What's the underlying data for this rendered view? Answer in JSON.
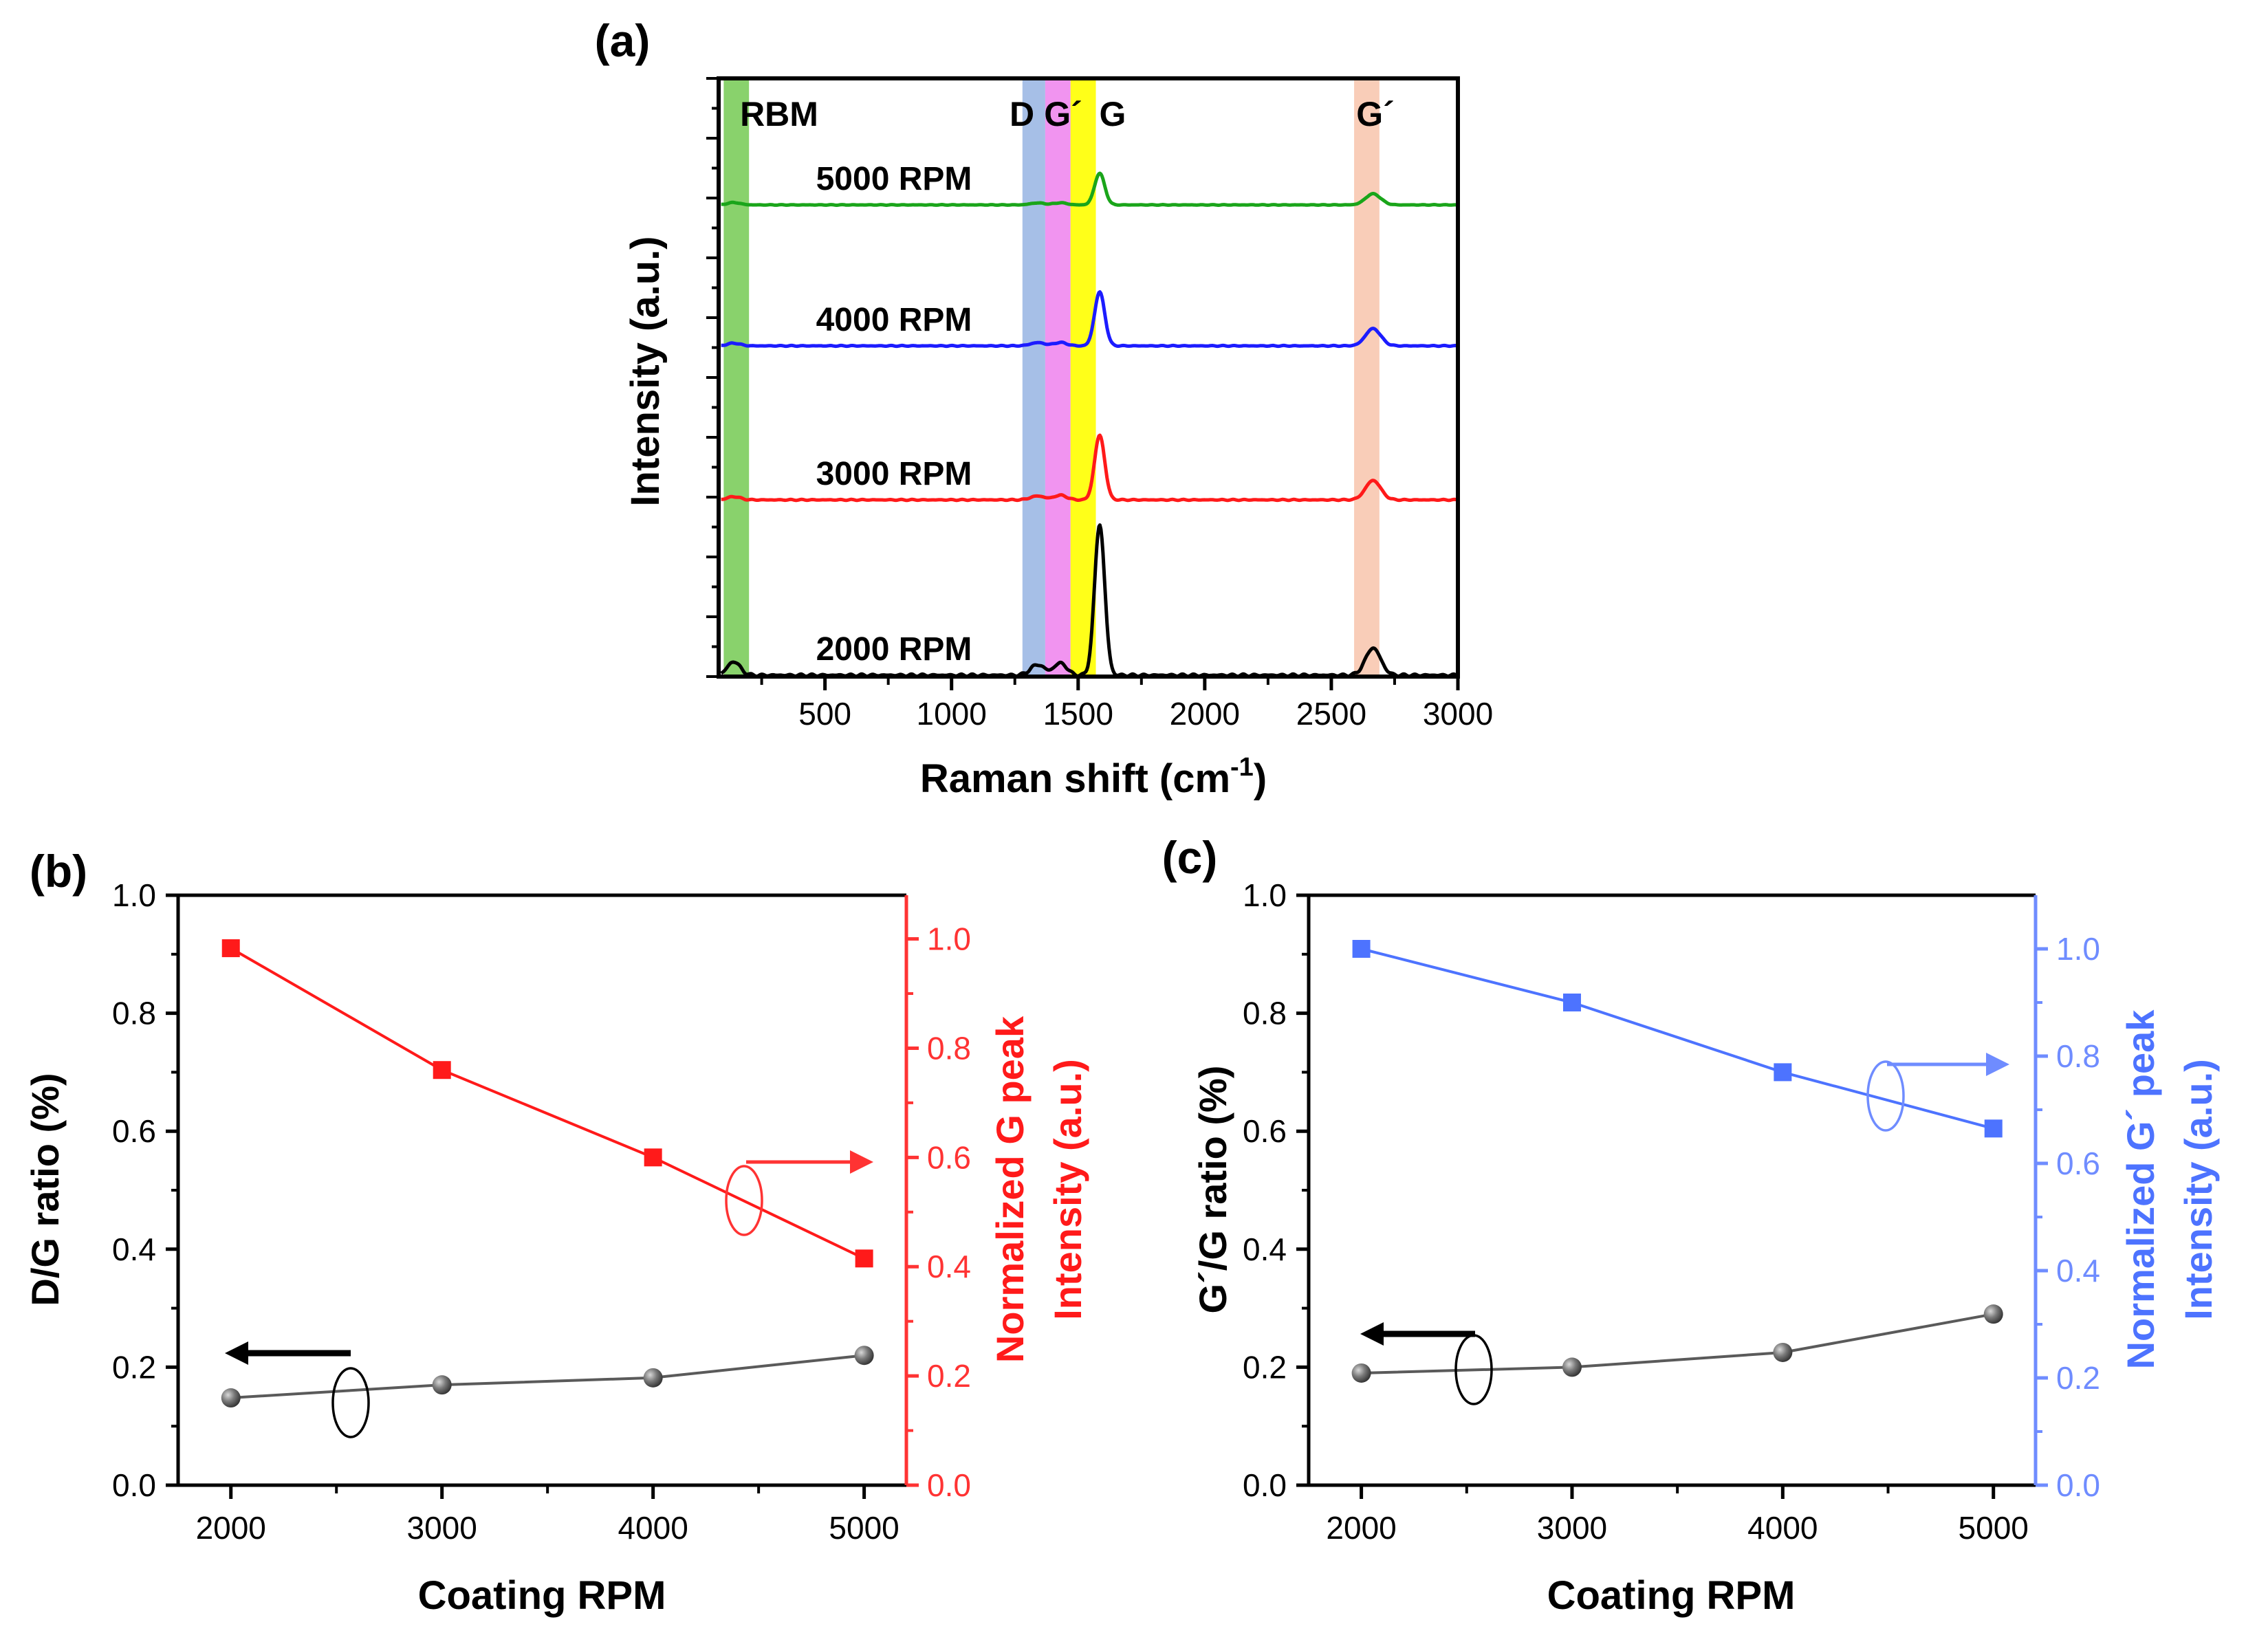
{
  "figure": {
    "panels": [
      {
        "id": "a",
        "label": "(a)"
      },
      {
        "id": "b",
        "label": "(b)"
      },
      {
        "id": "c",
        "label": "(c)"
      }
    ]
  },
  "colors": {
    "axis": "#000000",
    "black_series": "#5a5a5a",
    "red": "#ff1a1a",
    "red_axis": "#ff3333",
    "blue": "#4d73ff",
    "blue_axis": "#6f8cff",
    "green_trace": "#1aa51a",
    "blue_trace": "#1c1cff",
    "red_trace": "#ff1a1a",
    "black_trace": "#000000",
    "band_rbm": "#7ccd5c",
    "band_d": "#9cb8e4",
    "band_gminus": "#ef88ee",
    "band_g": "#ffff00",
    "band_g2": "#f8c8b0"
  },
  "chart_data": [
    {
      "id": "a",
      "type": "line",
      "title": "(a)",
      "xlabel": "Raman shift (cm-1)",
      "xlabel_main": "Raman shift (cm",
      "xlabel_sup": "-1",
      "xlabel_close": ")",
      "ylabel": "Intensity (a.u.)",
      "xlim": [
        80,
        3000
      ],
      "ylim": [
        0,
        1
      ],
      "xticks": [
        500,
        1000,
        1500,
        2000,
        2500,
        3000
      ],
      "bands": [
        {
          "label": "RBM",
          "x0": 100,
          "x1": 200,
          "color": "#7ccd5c"
        },
        {
          "label": "D",
          "x0": 1280,
          "x1": 1370,
          "color": "#9cb8e4"
        },
        {
          "label": "G´",
          "x0": 1370,
          "x1": 1470,
          "color": "#ef88ee"
        },
        {
          "label": "G",
          "x0": 1470,
          "x1": 1570,
          "color": "#ffff00"
        },
        {
          "label": "G´",
          "x0": 2590,
          "x1": 2690,
          "color": "#f8c8b0"
        }
      ],
      "series": [
        {
          "name": "5000 RPM",
          "baseline": 0.82,
          "scale": 0.11,
          "color": "#1aa51a",
          "rbm": 0.06,
          "d": 0.05,
          "gm": 0.06,
          "g": 0.8,
          "g2": 0.28
        },
        {
          "name": "4000 RPM",
          "baseline": 0.606,
          "scale": 0.15,
          "color": "#1c1cff",
          "rbm": 0.05,
          "d": 0.06,
          "gm": 0.07,
          "g": 1.0,
          "g2": 0.32
        },
        {
          "name": "3000 RPM",
          "baseline": 0.37,
          "scale": 0.18,
          "color": "#ff1a1a",
          "rbm": 0.05,
          "d": 0.06,
          "gm": 0.08,
          "g": 1.0,
          "g2": 0.3
        },
        {
          "name": "2000 RPM",
          "baseline": 0.0,
          "scale": 0.42,
          "color": "#000000",
          "rbm": 0.09,
          "d": 0.07,
          "gm": 0.09,
          "g": 1.0,
          "g2": 0.18
        }
      ]
    },
    {
      "id": "b",
      "type": "line",
      "title": "(b)",
      "xlabel": "Coating RPM",
      "ylabel": "D/G ratio (%)",
      "ylabel_right_1": "Normalized G peak",
      "ylabel_right_2": "Intensity (a.u.)",
      "xlim": [
        1750,
        5200
      ],
      "ylim": [
        0,
        1.0
      ],
      "ylim_right": [
        0,
        1.08
      ],
      "xticks": [
        2000,
        3000,
        4000,
        5000
      ],
      "yticks": [
        0.0,
        0.2,
        0.4,
        0.6,
        0.8,
        1.0
      ],
      "yticks_right": [
        0.0,
        0.2,
        0.4,
        0.6,
        0.8,
        1.0
      ],
      "x": [
        2000,
        3000,
        4000,
        5000
      ],
      "series": [
        {
          "name": "D/G ratio",
          "axis": "left",
          "values": [
            0.148,
            0.17,
            0.182,
            0.22
          ],
          "color": "#5a5a5a",
          "marker": "sphere"
        },
        {
          "name": "Normalized G peak intensity",
          "axis": "right",
          "values": [
            0.983,
            0.76,
            0.6,
            0.415
          ],
          "color": "#ff1a1a",
          "marker": "square"
        }
      ]
    },
    {
      "id": "c",
      "type": "line",
      "title": "(c)",
      "xlabel": "Coating RPM",
      "ylabel": "G´/G ratio (%)",
      "ylabel_right_1": "Normalized G´ peak",
      "ylabel_right_2": "Intensity (a.u.)",
      "xlim": [
        1750,
        5200
      ],
      "ylim": [
        0,
        1.0
      ],
      "ylim_right": [
        0,
        1.1
      ],
      "xticks": [
        2000,
        3000,
        4000,
        5000
      ],
      "yticks": [
        0.0,
        0.2,
        0.4,
        0.6,
        0.8,
        1.0
      ],
      "yticks_right": [
        0.0,
        0.2,
        0.4,
        0.6,
        0.8,
        1.0
      ],
      "x": [
        2000,
        3000,
        4000,
        5000
      ],
      "series": [
        {
          "name": "G´/G ratio",
          "axis": "left",
          "values": [
            0.19,
            0.2,
            0.225,
            0.29
          ],
          "color": "#5a5a5a",
          "marker": "sphere"
        },
        {
          "name": "Normalized G´ peak intensity",
          "axis": "right",
          "values": [
            1.0,
            0.9,
            0.77,
            0.665
          ],
          "color": "#4d73ff",
          "marker": "square"
        }
      ]
    }
  ]
}
